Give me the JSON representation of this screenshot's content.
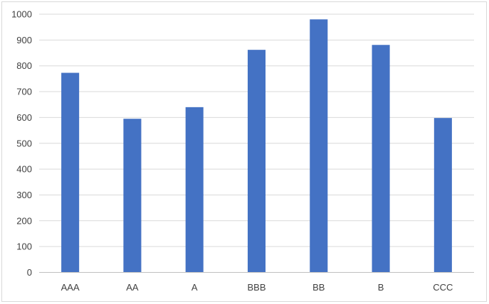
{
  "chart_data": {
    "type": "bar",
    "title": "",
    "xlabel": "",
    "ylabel": "",
    "categories": [
      "AAA",
      "AA",
      "A",
      "BBB",
      "BB",
      "B",
      "CCC"
    ],
    "values": [
      773,
      595,
      640,
      862,
      980,
      881,
      598
    ],
    "ylim": [
      0,
      1000
    ],
    "yticks": [
      0,
      100,
      200,
      300,
      400,
      500,
      600,
      700,
      800,
      900,
      1000
    ],
    "grid": true,
    "legend": "none",
    "colors": {
      "bar": "#4472C4",
      "grid": "#d9d9d9",
      "axis": "#bfbfbf",
      "text": "#404040"
    }
  }
}
